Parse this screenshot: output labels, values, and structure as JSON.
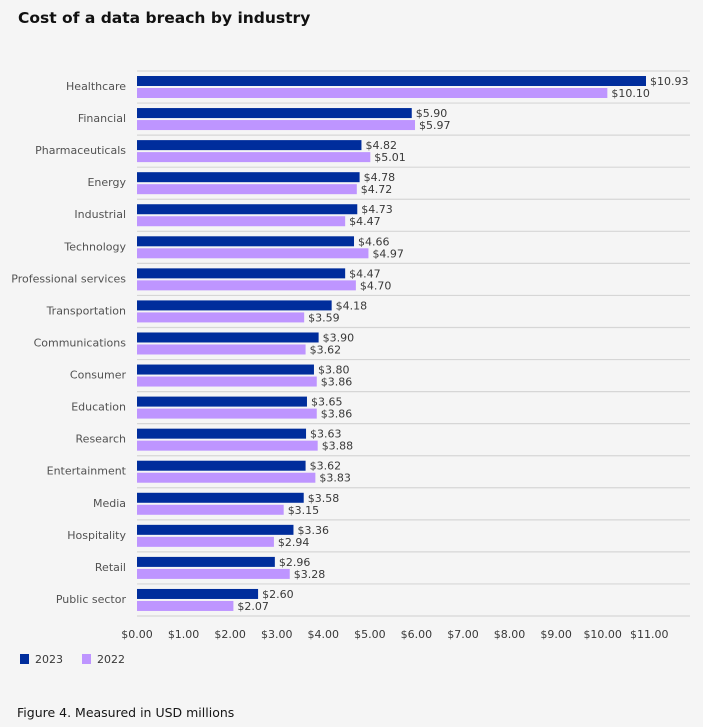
{
  "chart_data": {
    "type": "bar",
    "orientation": "horizontal",
    "title": "Cost of a data breach by industry",
    "caption": "Figure 4. Measured in USD millions",
    "categories": [
      "Healthcare",
      "Financial",
      "Pharmaceuticals",
      "Energy",
      "Industrial",
      "Technology",
      "Professional services",
      "Transportation",
      "Communications",
      "Consumer",
      "Education",
      "Research",
      "Entertainment",
      "Media",
      "Hospitality",
      "Retail",
      "Public sector"
    ],
    "series": [
      {
        "name": "2023",
        "color": "#002d9c",
        "values": [
          10.93,
          5.9,
          4.82,
          4.78,
          4.73,
          4.66,
          4.47,
          4.18,
          3.9,
          3.8,
          3.65,
          3.63,
          3.62,
          3.58,
          3.36,
          2.96,
          2.6
        ]
      },
      {
        "name": "2022",
        "color": "#be95ff",
        "values": [
          10.1,
          5.97,
          5.01,
          4.72,
          4.47,
          4.97,
          4.7,
          3.59,
          3.62,
          3.86,
          3.86,
          3.88,
          3.83,
          3.15,
          2.94,
          3.28,
          2.07
        ]
      }
    ],
    "value_labels": [
      [
        "$10.93",
        "$5.90",
        "$4.82",
        "$4.78",
        "$4.73",
        "$4.66",
        "$4.47",
        "$4.18",
        "$3.90",
        "$3.80",
        "$3.65",
        "$3.63",
        "$3.62",
        "$3.58",
        "$3.36",
        "$2.96",
        "$2.60"
      ],
      [
        "$10.10",
        "$5.97",
        "$5.01",
        "$4.72",
        "$4.47",
        "$4.97",
        "$4.70",
        "$3.59",
        "$3.62",
        "$3.86",
        "$3.86",
        "$3.88",
        "$3.83",
        "$3.15",
        "$2.94",
        "$3.28",
        "$2.07"
      ]
    ],
    "xlim": [
      0,
      11
    ],
    "x_ticks": [
      0,
      1,
      2,
      3,
      4,
      5,
      6,
      7,
      8,
      9,
      10,
      11
    ],
    "x_tick_labels": [
      "$0.00",
      "$1.00",
      "$2.00",
      "$3.00",
      "$4.00",
      "$5.00",
      "$6.00",
      "$7.00",
      "$8.00",
      "$9.00",
      "$10.00",
      "$11.00"
    ],
    "grid": "horizontal row separators",
    "legend_placement": "bottom-left"
  }
}
